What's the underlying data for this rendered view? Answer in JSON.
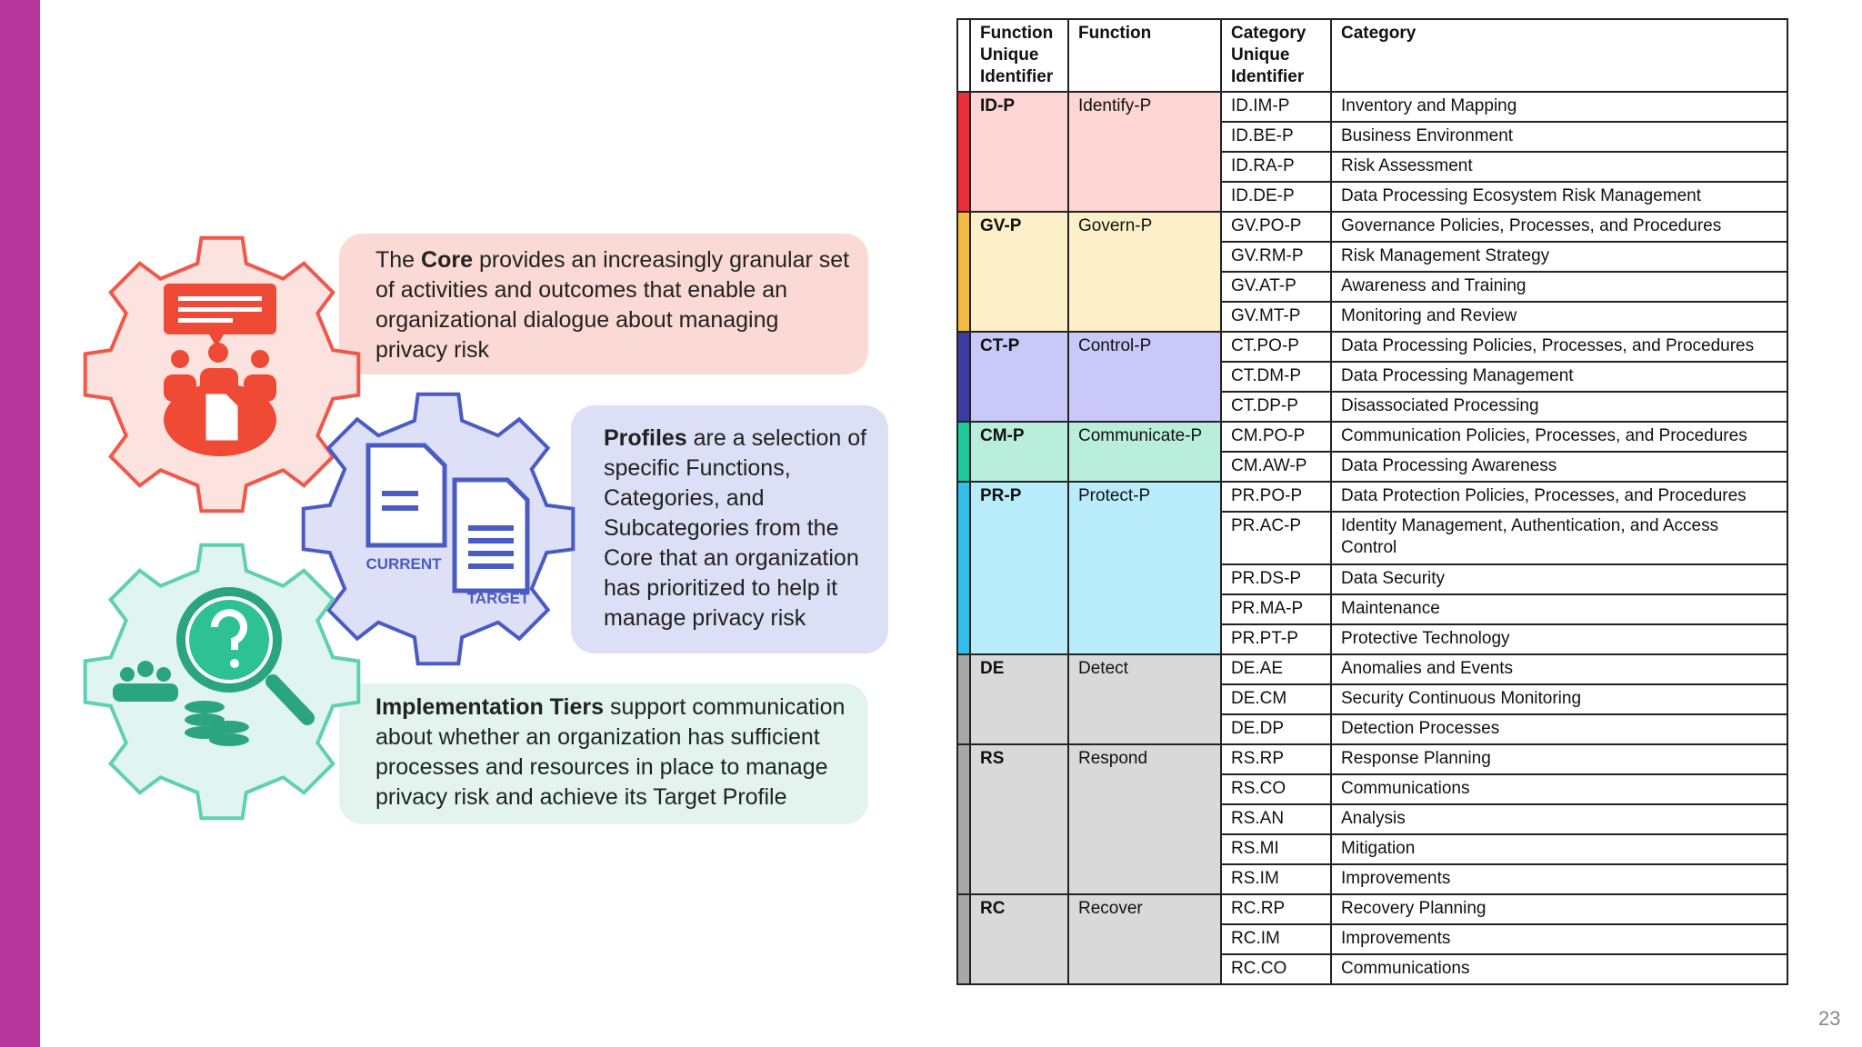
{
  "slide": {
    "items": [
      {
        "pre": "The ",
        "bold": "Core",
        "post": " provides an increasingly granular set of activities and outcomes that enable an organizational dialogue about managing privacy risk"
      },
      {
        "bold": "Profiles",
        "post": " are a selection of specific Functions, Categories, and Subcategories from the Core that an organization has prioritized to help it manage privacy risk"
      },
      {
        "bold": "Implementation Tiers",
        "post": " support communication about whether an organization has sufficient processes and resources in place to manage privacy risk and achieve its Target Profile"
      }
    ],
    "gear_labels": [
      "CURRENT",
      "TARGET"
    ],
    "page_number": "23"
  },
  "table": {
    "headers": [
      "Function Unique Identifier",
      "Function",
      "Category Unique Identifier",
      "Category"
    ],
    "groups": [
      {
        "id": "ID-P",
        "function": "Identify-P",
        "strip": "#e8303a",
        "bg": "#fdd5d2",
        "rows": [
          [
            "ID.IM-P",
            "Inventory and Mapping"
          ],
          [
            "ID.BE-P",
            "Business Environment"
          ],
          [
            "ID.RA-P",
            "Risk Assessment"
          ],
          [
            "ID.DE-P",
            "Data Processing Ecosystem Risk Management"
          ]
        ]
      },
      {
        "id": "GV-P",
        "function": "Govern-P",
        "strip": "#f4b942",
        "bg": "#fdf0c8",
        "rows": [
          [
            "GV.PO-P",
            "Governance Policies, Processes, and Procedures"
          ],
          [
            "GV.RM-P",
            "Risk Management Strategy"
          ],
          [
            "GV.AT-P",
            "Awareness and Training"
          ],
          [
            "GV.MT-P",
            "Monitoring and Review"
          ]
        ]
      },
      {
        "id": "CT-P",
        "function": "Control-P",
        "strip": "#3a3ea0",
        "bg": "#c9c8f8",
        "rows": [
          [
            "CT.PO-P",
            "Data Processing Policies, Processes, and Procedures"
          ],
          [
            "CT.DM-P",
            "Data Processing Management"
          ],
          [
            "CT.DP-P",
            "Disassociated Processing"
          ]
        ]
      },
      {
        "id": "CM-P",
        "function": "Communicate-P",
        "strip": "#1ec99a",
        "bg": "#b9eedc",
        "rows": [
          [
            "CM.PO-P",
            "Communication Policies, Processes, and Procedures"
          ],
          [
            "CM.AW-P",
            "Data Processing Awareness"
          ]
        ]
      },
      {
        "id": "PR-P",
        "function": "Protect-P",
        "strip": "#33bfeb",
        "bg": "#b9ecfb",
        "rows": [
          [
            "PR.PO-P",
            "Data Protection Policies, Processes, and Procedures"
          ],
          [
            "PR.AC-P",
            "Identity Management, Authentication, and Access Control"
          ],
          [
            "PR.DS-P",
            "Data Security"
          ],
          [
            "PR.MA-P",
            "Maintenance"
          ],
          [
            "PR.PT-P",
            "Protective Technology"
          ]
        ]
      },
      {
        "id": "DE",
        "function": "Detect",
        "strip": "#a8a8a8",
        "bg": "#d9d9d9",
        "rows": [
          [
            "DE.AE",
            "Anomalies and Events"
          ],
          [
            "DE.CM",
            "Security Continuous Monitoring"
          ],
          [
            "DE.DP",
            "Detection Processes"
          ]
        ]
      },
      {
        "id": "RS",
        "function": "Respond",
        "strip": "#a8a8a8",
        "bg": "#d9d9d9",
        "rows": [
          [
            "RS.RP",
            "Response Planning"
          ],
          [
            "RS.CO",
            "Communications"
          ],
          [
            "RS.AN",
            "Analysis"
          ],
          [
            "RS.MI",
            "Mitigation"
          ],
          [
            "RS.IM",
            "Improvements"
          ]
        ]
      },
      {
        "id": "RC",
        "function": "Recover",
        "strip": "#a8a8a8",
        "bg": "#d9d9d9",
        "rows": [
          [
            "RC.RP",
            "Recovery Planning"
          ],
          [
            "RC.IM",
            "Improvements"
          ],
          [
            "RC.CO",
            "Communications"
          ]
        ]
      }
    ]
  }
}
